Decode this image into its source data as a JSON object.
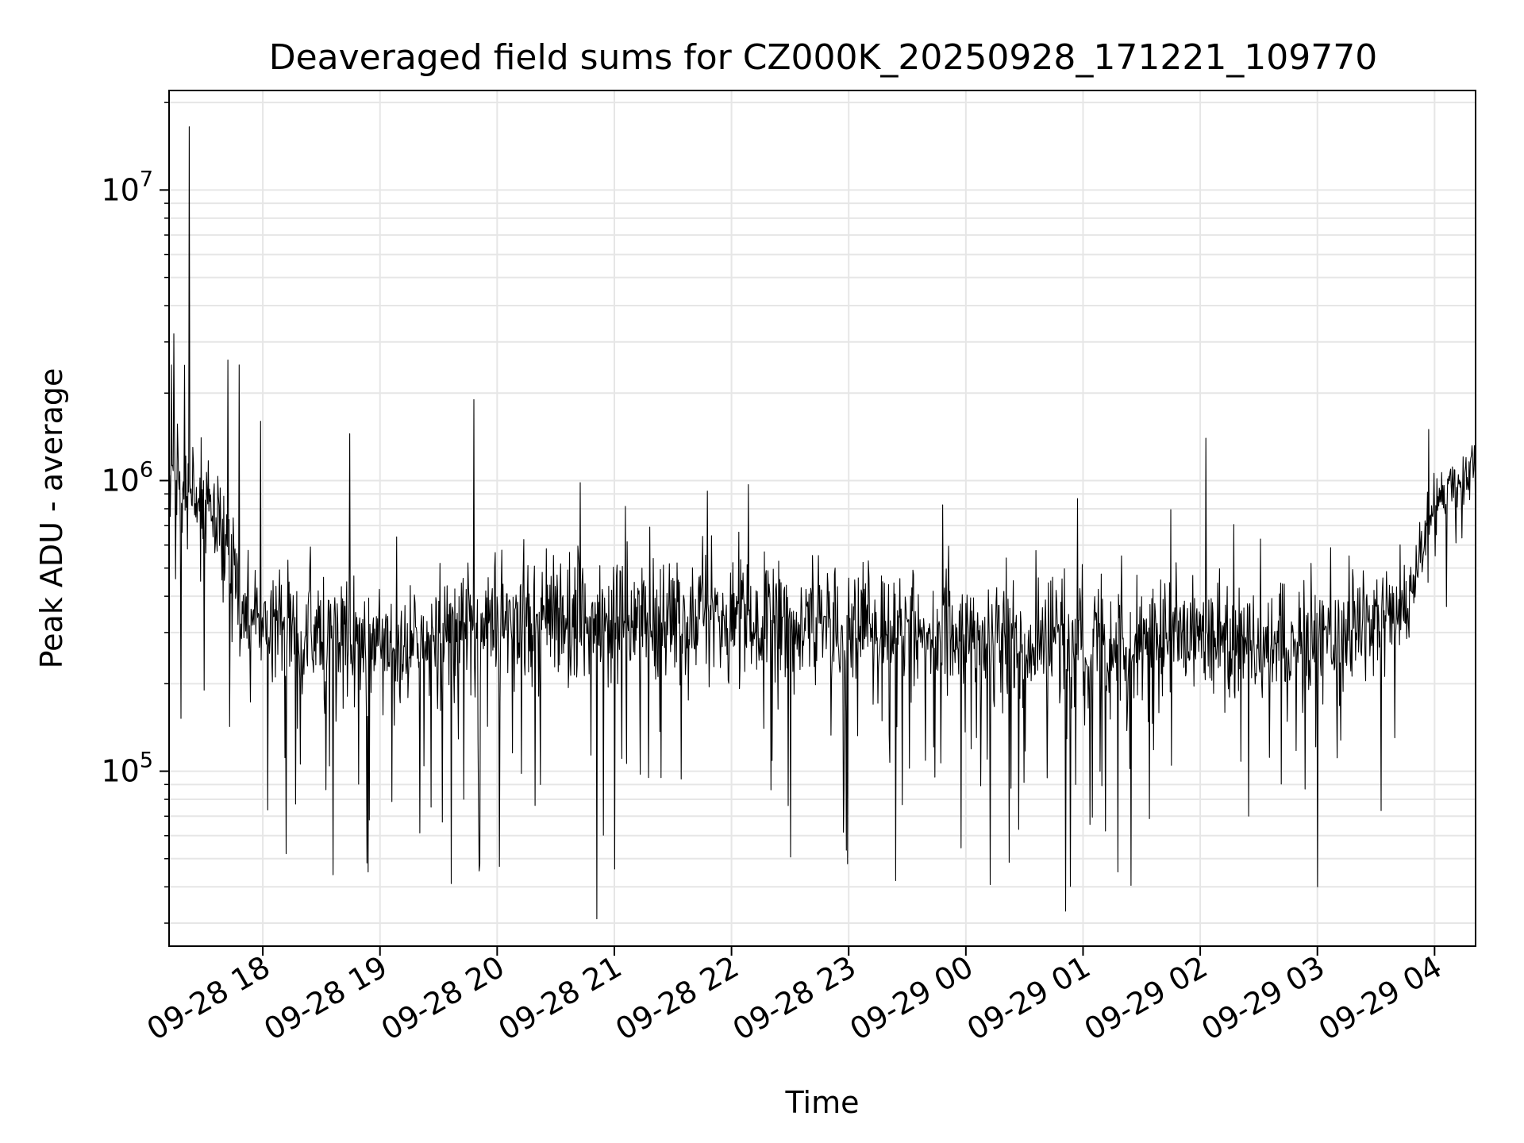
{
  "chart_data": {
    "type": "line",
    "title": "Deaveraged field sums for CZ000K_20250928_171221_109770",
    "xlabel": "Time",
    "ylabel": "Peak ADU - average",
    "y_scale": "log",
    "ylim": [
      25000,
      22000000
    ],
    "xlim_hours": [
      17.2,
      28.35
    ],
    "grid": true,
    "x_ticks": [
      {
        "hour": 18,
        "label": "09-28 18"
      },
      {
        "hour": 19,
        "label": "09-28 19"
      },
      {
        "hour": 20,
        "label": "09-28 20"
      },
      {
        "hour": 21,
        "label": "09-28 21"
      },
      {
        "hour": 22,
        "label": "09-28 22"
      },
      {
        "hour": 23,
        "label": "09-28 23"
      },
      {
        "hour": 24,
        "label": "09-29 00"
      },
      {
        "hour": 25,
        "label": "09-29 01"
      },
      {
        "hour": 26,
        "label": "09-29 02"
      },
      {
        "hour": 27,
        "label": "09-29 03"
      },
      {
        "hour": 28,
        "label": "09-29 04"
      }
    ],
    "y_ticks": [
      {
        "value": 100000,
        "base": "10",
        "exp": "5"
      },
      {
        "value": 1000000,
        "base": "10",
        "exp": "6"
      },
      {
        "value": 10000000,
        "base": "10",
        "exp": "7"
      }
    ],
    "series": [
      {
        "name": "Peak ADU - average",
        "color": "#000000",
        "baseline_hours": [
          17.2,
          17.35,
          17.5,
          17.65,
          17.8,
          18.0,
          18.5,
          19.0,
          19.5,
          19.8,
          20.0,
          20.5,
          21.0,
          21.5,
          22.0,
          22.5,
          23.0,
          23.5,
          24.0,
          24.5,
          25.0,
          25.5,
          26.0,
          26.5,
          27.0,
          27.5,
          27.7,
          27.85,
          28.0,
          28.2,
          28.35
        ],
        "baseline_values": [
          1100000,
          900000,
          800000,
          650000,
          420000,
          320000,
          300000,
          280000,
          270000,
          330000,
          320000,
          350000,
          320000,
          340000,
          330000,
          320000,
          310000,
          300000,
          290000,
          280000,
          270000,
          280000,
          290000,
          280000,
          300000,
          320000,
          340000,
          500000,
          850000,
          1000000,
          1200000
        ],
        "noise_sigma_decades": 0.2,
        "samples": 2200,
        "notable_peaks": [
          {
            "hour": 17.22,
            "value": 2500000
          },
          {
            "hour": 17.24,
            "value": 3200000
          },
          {
            "hour": 17.37,
            "value": 16500000
          },
          {
            "hour": 17.8,
            "value": 2500000
          },
          {
            "hour": 17.98,
            "value": 1600000
          },
          {
            "hour": 18.74,
            "value": 1450000
          },
          {
            "hour": 19.8,
            "value": 1900000
          },
          {
            "hour": 26.05,
            "value": 1400000
          },
          {
            "hour": 27.95,
            "value": 1500000
          }
        ],
        "notable_dips": [
          {
            "hour": 17.5,
            "value": 190000
          },
          {
            "hour": 18.2,
            "value": 52000
          },
          {
            "hour": 18.6,
            "value": 44000
          },
          {
            "hour": 18.9,
            "value": 45000
          },
          {
            "hour": 19.85,
            "value": 48000
          },
          {
            "hour": 20.02,
            "value": 47000
          },
          {
            "hour": 22.99,
            "value": 48000
          },
          {
            "hour": 23.4,
            "value": 42000
          },
          {
            "hour": 24.85,
            "value": 33000
          },
          {
            "hour": 25.3,
            "value": 45000
          },
          {
            "hour": 27.0,
            "value": 40000
          }
        ]
      }
    ]
  }
}
